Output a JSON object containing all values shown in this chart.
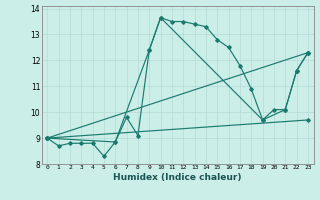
{
  "xlabel": "Humidex (Indice chaleur)",
  "bg_color": "#cceee8",
  "line_color": "#1a7a6e",
  "grid_color": "#b8ddd8",
  "xlim": [
    -0.5,
    23.5
  ],
  "ylim": [
    8,
    14.1
  ],
  "yticks": [
    8,
    9,
    10,
    11,
    12,
    13,
    14
  ],
  "xticks": [
    0,
    1,
    2,
    3,
    4,
    5,
    6,
    7,
    8,
    9,
    10,
    11,
    12,
    13,
    14,
    15,
    16,
    17,
    18,
    19,
    20,
    21,
    22,
    23
  ],
  "line_main": {
    "x": [
      0,
      1,
      2,
      3,
      4,
      5,
      6,
      7,
      8,
      9,
      10,
      11,
      12,
      13,
      14,
      15,
      16,
      17,
      18,
      19,
      20,
      21,
      22,
      23
    ],
    "y": [
      9.0,
      8.7,
      8.8,
      8.8,
      8.8,
      8.3,
      8.85,
      9.8,
      9.1,
      12.4,
      13.65,
      13.5,
      13.5,
      13.4,
      13.3,
      12.8,
      12.5,
      11.8,
      10.9,
      9.7,
      10.1,
      10.1,
      11.6,
      12.3
    ]
  },
  "line_fan1": {
    "x": [
      0,
      6,
      9,
      10,
      19,
      21,
      22,
      23
    ],
    "y": [
      9.0,
      8.85,
      12.4,
      13.65,
      9.7,
      10.1,
      11.6,
      12.3
    ]
  },
  "line_straight1": {
    "x": [
      0,
      23
    ],
    "y": [
      9.0,
      12.3
    ]
  },
  "line_straight2": {
    "x": [
      0,
      23
    ],
    "y": [
      9.0,
      9.7
    ]
  }
}
